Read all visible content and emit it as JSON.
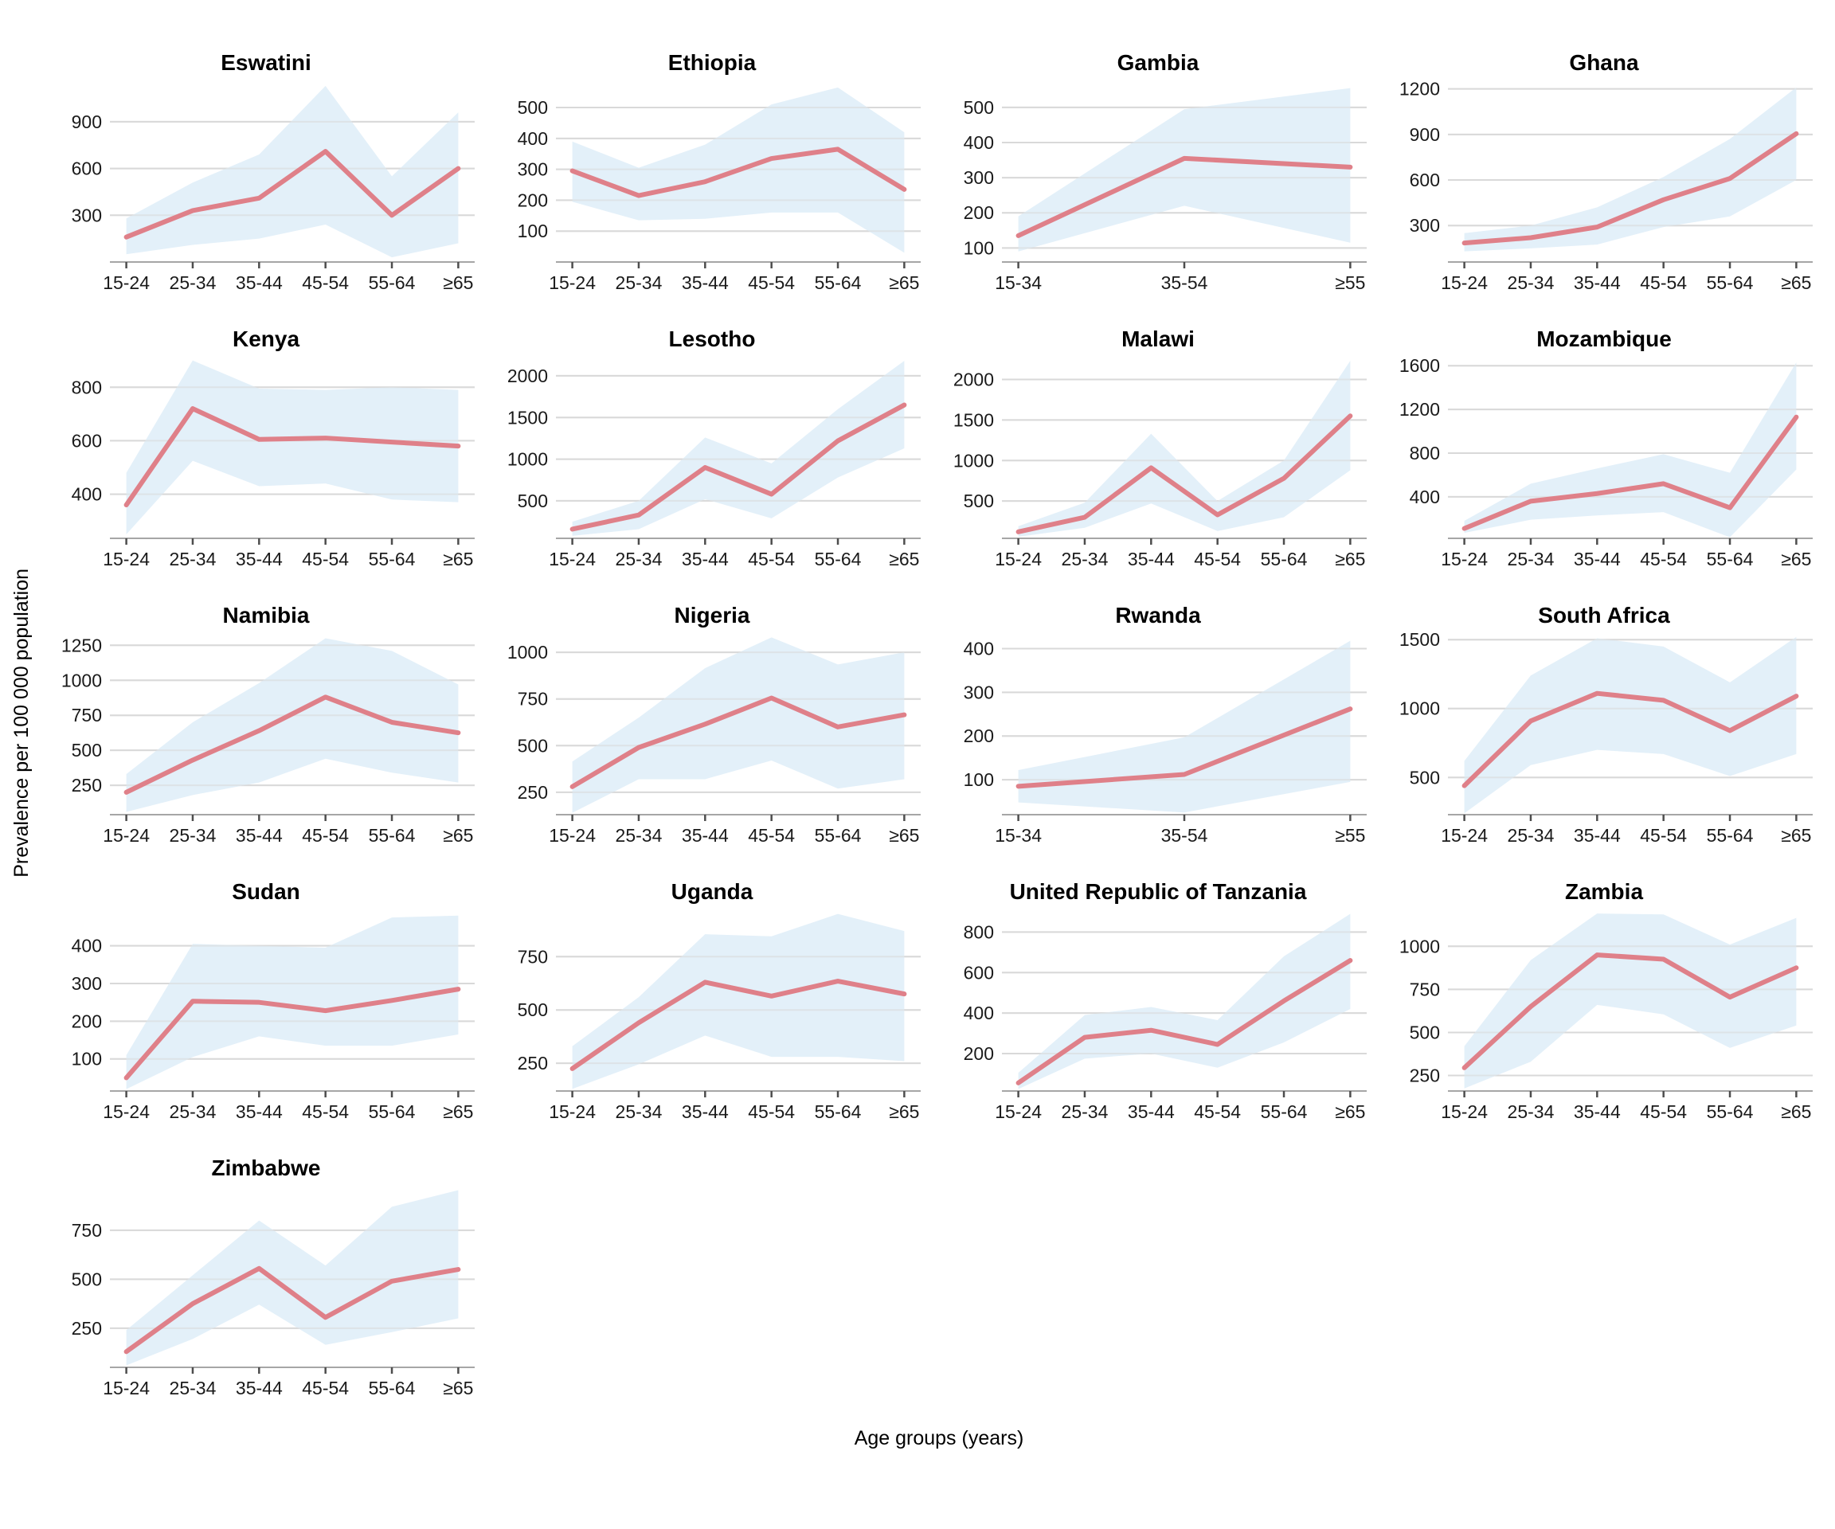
{
  "ylabel": "Prevalence per 100 000 population",
  "xlabel": "Age groups (years)",
  "colors": {
    "line": "#df8089",
    "band": "#e3f0f9",
    "grid": "#d9d9d9",
    "axis_line": "#a6a6a6",
    "tick_mark": "#4d4d4d",
    "tick_text": "#1a1a1a",
    "title_text": "#000000"
  },
  "chart_data": [
    {
      "type": "line",
      "title": "Eswatini",
      "categories": [
        "15-24",
        "25-34",
        "35-44",
        "45-54",
        "55-64",
        "≥65"
      ],
      "yticks": [
        300,
        600,
        900
      ],
      "ylim": [
        0,
        1150
      ],
      "series": [
        {
          "name": "prevalence",
          "values": [
            160,
            330,
            410,
            710,
            300,
            600
          ]
        },
        {
          "name": "lower",
          "values": [
            50,
            110,
            150,
            240,
            30,
            120
          ]
        },
        {
          "name": "upper",
          "values": [
            280,
            510,
            690,
            1130,
            550,
            960
          ]
        }
      ]
    },
    {
      "type": "line",
      "title": "Ethiopia",
      "categories": [
        "15-24",
        "25-34",
        "35-44",
        "45-54",
        "55-64",
        "≥65"
      ],
      "yticks": [
        100,
        200,
        300,
        400,
        500
      ],
      "ylim": [
        0,
        580
      ],
      "series": [
        {
          "name": "prevalence",
          "values": [
            295,
            215,
            260,
            335,
            365,
            235
          ]
        },
        {
          "name": "lower",
          "values": [
            195,
            135,
            140,
            160,
            160,
            30
          ]
        },
        {
          "name": "upper",
          "values": [
            390,
            305,
            380,
            510,
            565,
            420
          ]
        }
      ]
    },
    {
      "type": "line",
      "title": "Gambia",
      "categories": [
        "15-34",
        "35-54",
        "≥55"
      ],
      "yticks": [
        100,
        200,
        300,
        400,
        500
      ],
      "ylim": [
        60,
        570
      ],
      "series": [
        {
          "name": "prevalence",
          "values": [
            135,
            355,
            330
          ]
        },
        {
          "name": "lower",
          "values": [
            90,
            220,
            115
          ]
        },
        {
          "name": "upper",
          "values": [
            190,
            495,
            555
          ]
        }
      ]
    },
    {
      "type": "line",
      "title": "Ghana",
      "categories": [
        "15-24",
        "25-34",
        "35-44",
        "45-54",
        "55-64",
        "≥65"
      ],
      "yticks": [
        300,
        600,
        900,
        1200
      ],
      "ylim": [
        60,
        1240
      ],
      "series": [
        {
          "name": "prevalence",
          "values": [
            185,
            220,
            290,
            470,
            610,
            905
          ]
        },
        {
          "name": "lower",
          "values": [
            130,
            150,
            175,
            290,
            360,
            600
          ]
        },
        {
          "name": "upper",
          "values": [
            250,
            300,
            420,
            620,
            870,
            1210
          ]
        }
      ]
    },
    {
      "type": "line",
      "title": "Kenya",
      "categories": [
        "15-24",
        "25-34",
        "35-44",
        "45-54",
        "55-64",
        "≥65"
      ],
      "yticks": [
        400,
        600,
        800
      ],
      "ylim": [
        235,
        905
      ],
      "series": [
        {
          "name": "prevalence",
          "values": [
            360,
            720,
            605,
            610,
            595,
            580
          ]
        },
        {
          "name": "lower",
          "values": [
            250,
            525,
            430,
            440,
            380,
            370
          ]
        },
        {
          "name": "upper",
          "values": [
            480,
            900,
            795,
            790,
            800,
            790
          ]
        }
      ]
    },
    {
      "type": "line",
      "title": "Lesotho",
      "categories": [
        "15-24",
        "25-34",
        "35-44",
        "45-54",
        "55-64",
        "≥65"
      ],
      "yticks": [
        500,
        1000,
        1500,
        2000
      ],
      "ylim": [
        50,
        2200
      ],
      "series": [
        {
          "name": "prevalence",
          "values": [
            160,
            330,
            900,
            580,
            1220,
            1650
          ]
        },
        {
          "name": "lower",
          "values": [
            80,
            160,
            520,
            290,
            780,
            1130
          ]
        },
        {
          "name": "upper",
          "values": [
            250,
            500,
            1260,
            950,
            1600,
            2180
          ]
        }
      ]
    },
    {
      "type": "line",
      "title": "Malawi",
      "categories": [
        "15-24",
        "25-34",
        "35-44",
        "45-54",
        "55-64",
        "≥65"
      ],
      "yticks": [
        500,
        1000,
        1500,
        2000
      ],
      "ylim": [
        40,
        2250
      ],
      "series": [
        {
          "name": "prevalence",
          "values": [
            120,
            300,
            910,
            330,
            780,
            1550
          ]
        },
        {
          "name": "lower",
          "values": [
            60,
            170,
            470,
            130,
            300,
            880
          ]
        },
        {
          "name": "upper",
          "values": [
            190,
            480,
            1330,
            500,
            1000,
            2230
          ]
        }
      ]
    },
    {
      "type": "line",
      "title": "Mozambique",
      "categories": [
        "15-24",
        "25-34",
        "35-44",
        "45-54",
        "55-64",
        "≥65"
      ],
      "yticks": [
        400,
        800,
        1200,
        1600
      ],
      "ylim": [
        20,
        1660
      ],
      "series": [
        {
          "name": "prevalence",
          "values": [
            110,
            360,
            430,
            520,
            300,
            1130
          ]
        },
        {
          "name": "lower",
          "values": [
            70,
            190,
            230,
            260,
            30,
            650
          ]
        },
        {
          "name": "upper",
          "values": [
            180,
            520,
            660,
            790,
            620,
            1630
          ]
        }
      ]
    },
    {
      "type": "line",
      "title": "Namibia",
      "categories": [
        "15-24",
        "25-34",
        "35-44",
        "45-54",
        "55-64",
        "≥65"
      ],
      "yticks": [
        250,
        500,
        750,
        1000,
        1250
      ],
      "ylim": [
        40,
        1320
      ],
      "series": [
        {
          "name": "prevalence",
          "values": [
            200,
            430,
            640,
            880,
            700,
            625
          ]
        },
        {
          "name": "lower",
          "values": [
            60,
            180,
            270,
            440,
            340,
            270
          ]
        },
        {
          "name": "upper",
          "values": [
            330,
            700,
            980,
            1300,
            1210,
            970
          ]
        }
      ]
    },
    {
      "type": "line",
      "title": "Nigeria",
      "categories": [
        "15-24",
        "25-34",
        "35-44",
        "45-54",
        "55-64",
        "≥65"
      ],
      "yticks": [
        250,
        500,
        750,
        1000
      ],
      "ylim": [
        130,
        1090
      ],
      "series": [
        {
          "name": "prevalence",
          "values": [
            280,
            490,
            615,
            755,
            600,
            665
          ]
        },
        {
          "name": "lower",
          "values": [
            140,
            320,
            320,
            420,
            270,
            320
          ]
        },
        {
          "name": "upper",
          "values": [
            415,
            650,
            915,
            1080,
            935,
            1000
          ]
        }
      ]
    },
    {
      "type": "line",
      "title": "Rwanda",
      "categories": [
        "15-34",
        "35-54",
        "≥55"
      ],
      "yticks": [
        100,
        200,
        300,
        400
      ],
      "ylim": [
        20,
        430
      ],
      "series": [
        {
          "name": "prevalence",
          "values": [
            85,
            112,
            262
          ]
        },
        {
          "name": "lower",
          "values": [
            48,
            25,
            95
          ]
        },
        {
          "name": "upper",
          "values": [
            122,
            197,
            418
          ]
        }
      ]
    },
    {
      "type": "line",
      "title": "South Africa",
      "categories": [
        "15-24",
        "25-34",
        "35-44",
        "45-54",
        "55-64",
        "≥65"
      ],
      "yticks": [
        500,
        1000,
        1500
      ],
      "ylim": [
        230,
        1530
      ],
      "series": [
        {
          "name": "prevalence",
          "values": [
            440,
            910,
            1110,
            1060,
            840,
            1090
          ]
        },
        {
          "name": "lower",
          "values": [
            240,
            590,
            700,
            670,
            510,
            670
          ]
        },
        {
          "name": "upper",
          "values": [
            620,
            1240,
            1510,
            1450,
            1190,
            1520
          ]
        }
      ]
    },
    {
      "type": "line",
      "title": "Sudan",
      "categories": [
        "15-24",
        "25-34",
        "35-44",
        "45-54",
        "55-64",
        "≥65"
      ],
      "yticks": [
        100,
        200,
        300,
        400
      ],
      "ylim": [
        15,
        490
      ],
      "series": [
        {
          "name": "prevalence",
          "values": [
            50,
            253,
            250,
            228,
            255,
            285
          ]
        },
        {
          "name": "lower",
          "values": [
            20,
            105,
            160,
            135,
            135,
            165
          ]
        },
        {
          "name": "upper",
          "values": [
            110,
            405,
            400,
            395,
            475,
            480
          ]
        }
      ]
    },
    {
      "type": "line",
      "title": "Uganda",
      "categories": [
        "15-24",
        "25-34",
        "35-44",
        "45-54",
        "55-64",
        "≥65"
      ],
      "yticks": [
        250,
        500,
        750
      ],
      "ylim": [
        120,
        960
      ],
      "series": [
        {
          "name": "prevalence",
          "values": [
            225,
            440,
            630,
            565,
            635,
            575
          ]
        },
        {
          "name": "lower",
          "values": [
            130,
            245,
            380,
            280,
            280,
            260
          ]
        },
        {
          "name": "upper",
          "values": [
            330,
            560,
            855,
            845,
            950,
            870
          ]
        }
      ]
    },
    {
      "type": "line",
      "title": "United Republic of Tanzania",
      "categories": [
        "15-24",
        "25-34",
        "35-44",
        "45-54",
        "55-64",
        "≥65"
      ],
      "yticks": [
        200,
        400,
        600,
        800
      ],
      "ylim": [
        15,
        900
      ],
      "series": [
        {
          "name": "prevalence",
          "values": [
            55,
            280,
            315,
            245,
            460,
            660
          ]
        },
        {
          "name": "lower",
          "values": [
            25,
            175,
            200,
            130,
            255,
            420
          ]
        },
        {
          "name": "upper",
          "values": [
            105,
            390,
            430,
            365,
            680,
            890
          ]
        }
      ]
    },
    {
      "type": "line",
      "title": "Zambia",
      "categories": [
        "15-24",
        "25-34",
        "35-44",
        "45-54",
        "55-64",
        "≥65"
      ],
      "yticks": [
        250,
        500,
        750,
        1000
      ],
      "ylim": [
        160,
        1200
      ],
      "series": [
        {
          "name": "prevalence",
          "values": [
            295,
            650,
            950,
            925,
            705,
            875
          ]
        },
        {
          "name": "lower",
          "values": [
            175,
            330,
            660,
            605,
            410,
            540
          ]
        },
        {
          "name": "upper",
          "values": [
            420,
            920,
            1190,
            1185,
            1010,
            1165
          ]
        }
      ]
    },
    {
      "type": "line",
      "title": "Zimbabwe",
      "categories": [
        "15-24",
        "25-34",
        "35-44",
        "45-54",
        "55-64",
        "≥65"
      ],
      "yticks": [
        250,
        500,
        750
      ],
      "ylim": [
        50,
        965
      ],
      "series": [
        {
          "name": "prevalence",
          "values": [
            130,
            375,
            555,
            305,
            490,
            550
          ]
        },
        {
          "name": "lower",
          "values": [
            60,
            195,
            370,
            165,
            230,
            300
          ]
        },
        {
          "name": "upper",
          "values": [
            240,
            520,
            800,
            570,
            870,
            955
          ]
        }
      ]
    }
  ]
}
